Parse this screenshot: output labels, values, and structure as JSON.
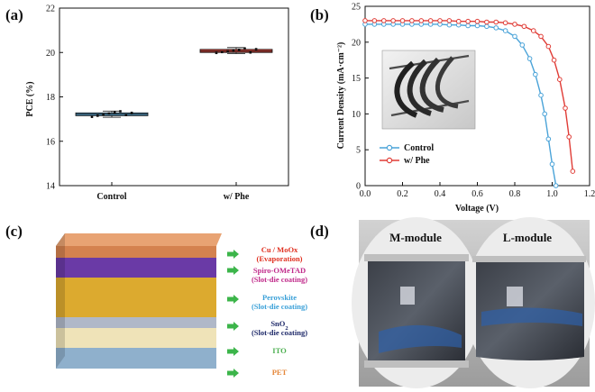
{
  "panels": {
    "a": {
      "label": "(a)",
      "chart_data": {
        "type": "box",
        "title": "",
        "xlabel": "",
        "ylabel": "PCE (%)",
        "ylim": [
          14,
          22
        ],
        "yticks": [
          14,
          16,
          18,
          20,
          22
        ],
        "categories": [
          "Control",
          "w/ Phe"
        ],
        "series": [
          {
            "category": "Control",
            "color": "#5aa9d6",
            "q1": 17.15,
            "median": 17.22,
            "q3": 17.28,
            "min": 17.08,
            "max": 17.36,
            "points": [
              17.1,
              17.15,
              17.2,
              17.25,
              17.3,
              17.35,
              17.18,
              17.28
            ]
          },
          {
            "category": "w/ Phe",
            "color": "#e0473c",
            "q1": 20.0,
            "median": 20.06,
            "q3": 20.14,
            "min": 19.95,
            "max": 20.22,
            "points": [
              19.98,
              20.02,
              20.05,
              20.08,
              20.12,
              20.18,
              20.0,
              20.15
            ]
          }
        ]
      }
    },
    "b": {
      "label": "(b)",
      "chart_data": {
        "type": "line",
        "title": "",
        "xlabel": "Voltage (V)",
        "ylabel": "Current Density (mA·cm⁻²)",
        "xlim": [
          0.0,
          1.2
        ],
        "ylim": [
          0,
          25
        ],
        "xticks": [
          "0.0",
          "0.2",
          "0.4",
          "0.6",
          "0.8",
          "1.0",
          "1.2"
        ],
        "yticks": [
          "0",
          "5",
          "10",
          "15",
          "20",
          "25"
        ],
        "legend_position": "bottom-left",
        "series": [
          {
            "name": "Control",
            "color": "#4aa3d8",
            "x": [
              0.0,
              0.05,
              0.1,
              0.15,
              0.2,
              0.25,
              0.3,
              0.35,
              0.4,
              0.45,
              0.5,
              0.55,
              0.6,
              0.65,
              0.7,
              0.75,
              0.8,
              0.84,
              0.88,
              0.91,
              0.94,
              0.96,
              0.98,
              1.0,
              1.02
            ],
            "y": [
              22.5,
              22.5,
              22.5,
              22.5,
              22.5,
              22.5,
              22.5,
              22.5,
              22.5,
              22.4,
              22.4,
              22.3,
              22.3,
              22.2,
              22.0,
              21.6,
              20.8,
              19.6,
              17.7,
              15.5,
              12.6,
              10.0,
              6.5,
              3.0,
              0.0
            ]
          },
          {
            "name": "w/ Phe",
            "color": "#e03c36",
            "x": [
              0.0,
              0.05,
              0.1,
              0.15,
              0.2,
              0.25,
              0.3,
              0.35,
              0.4,
              0.45,
              0.5,
              0.55,
              0.6,
              0.65,
              0.7,
              0.75,
              0.8,
              0.85,
              0.9,
              0.94,
              0.98,
              1.01,
              1.04,
              1.07,
              1.09,
              1.11
            ],
            "y": [
              23.0,
              23.0,
              23.0,
              23.0,
              23.0,
              23.0,
              23.0,
              23.0,
              23.0,
              23.0,
              22.9,
              22.9,
              22.9,
              22.8,
              22.8,
              22.7,
              22.5,
              22.2,
              21.6,
              20.8,
              19.4,
              17.5,
              14.8,
              10.8,
              6.8,
              2.0
            ]
          }
        ]
      }
    },
    "c": {
      "label": "(c)",
      "layers": [
        {
          "name": "Cu / MoOx",
          "process": "(Evaporation)",
          "text_color": "#e03020",
          "front": "#d4824f",
          "top": "#e8a373"
        },
        {
          "name": "Spiro-OMeTAD",
          "process": "(Slot-die coating)",
          "text_color": "#c02a8a",
          "front": "#6a3aa6"
        },
        {
          "name": "Perovskite",
          "process": "(Slot-die coating)",
          "text_color": "#3aa0d8",
          "front": "#dcaa2f"
        },
        {
          "name": "SnO",
          "sub": "2",
          "process": "(Slot-die coating)",
          "text_color": "#1f2a6a",
          "front": "#b0b8c8"
        },
        {
          "name": "ITO",
          "process": "",
          "text_color": "#4caf50",
          "front": "#efe3b8"
        },
        {
          "name": "PET",
          "process": "",
          "text_color": "#e5873a",
          "front": "#8fb0cc"
        }
      ],
      "arrow_color": "#3cb54a"
    },
    "d": {
      "label": "(d)",
      "modules": [
        {
          "label": "M-module"
        },
        {
          "label": "L-module"
        }
      ]
    }
  }
}
